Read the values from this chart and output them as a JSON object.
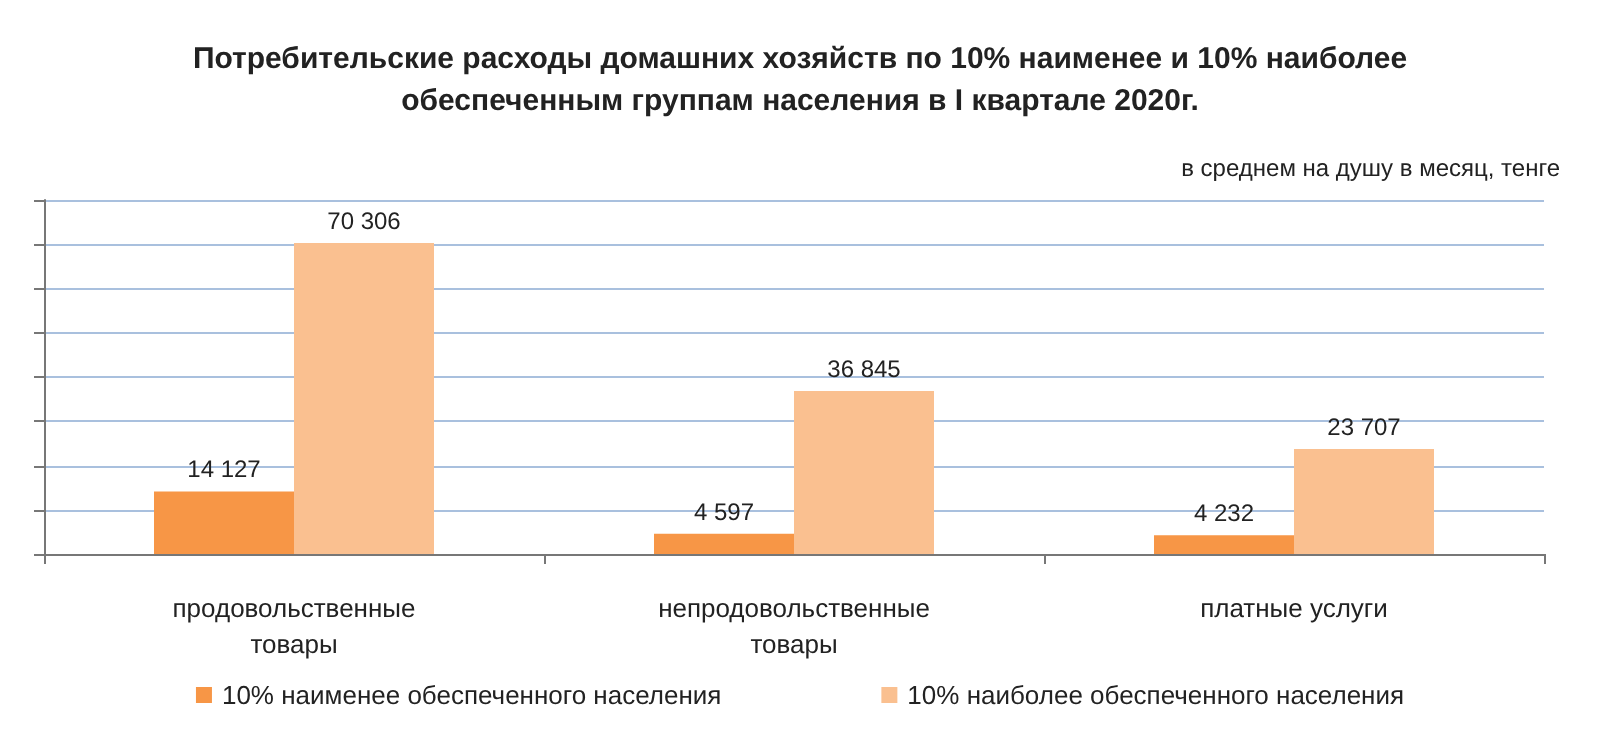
{
  "chart_data": {
    "type": "bar",
    "title": "Потребительские расходы домашних хозяйств по 10% наименее и 10% наиболее\nобеспеченным группам населения в I квартале 2020г.",
    "annotations": [
      "в среднем на душу в месяц, тенге"
    ],
    "categories": [
      "продовольственные\nтовары",
      "непродовольственные\nтовары",
      "платные услуги"
    ],
    "series": [
      {
        "name": "10% наименее обеспеченного населения",
        "color": "#f79646",
        "values": [
          14127,
          4597,
          4232
        ]
      },
      {
        "name": "10% наиболее обеспеченного населения",
        "color": "#fac090",
        "values": [
          70306,
          36845,
          23707
        ]
      }
    ],
    "ylim": [
      0,
      80000
    ],
    "yticks": [
      0,
      10000,
      20000,
      30000,
      40000,
      50000,
      60000,
      70000,
      80000
    ],
    "tick_labels": "x",
    "grid": "y",
    "legend": "bottom",
    "data_labels": true
  }
}
